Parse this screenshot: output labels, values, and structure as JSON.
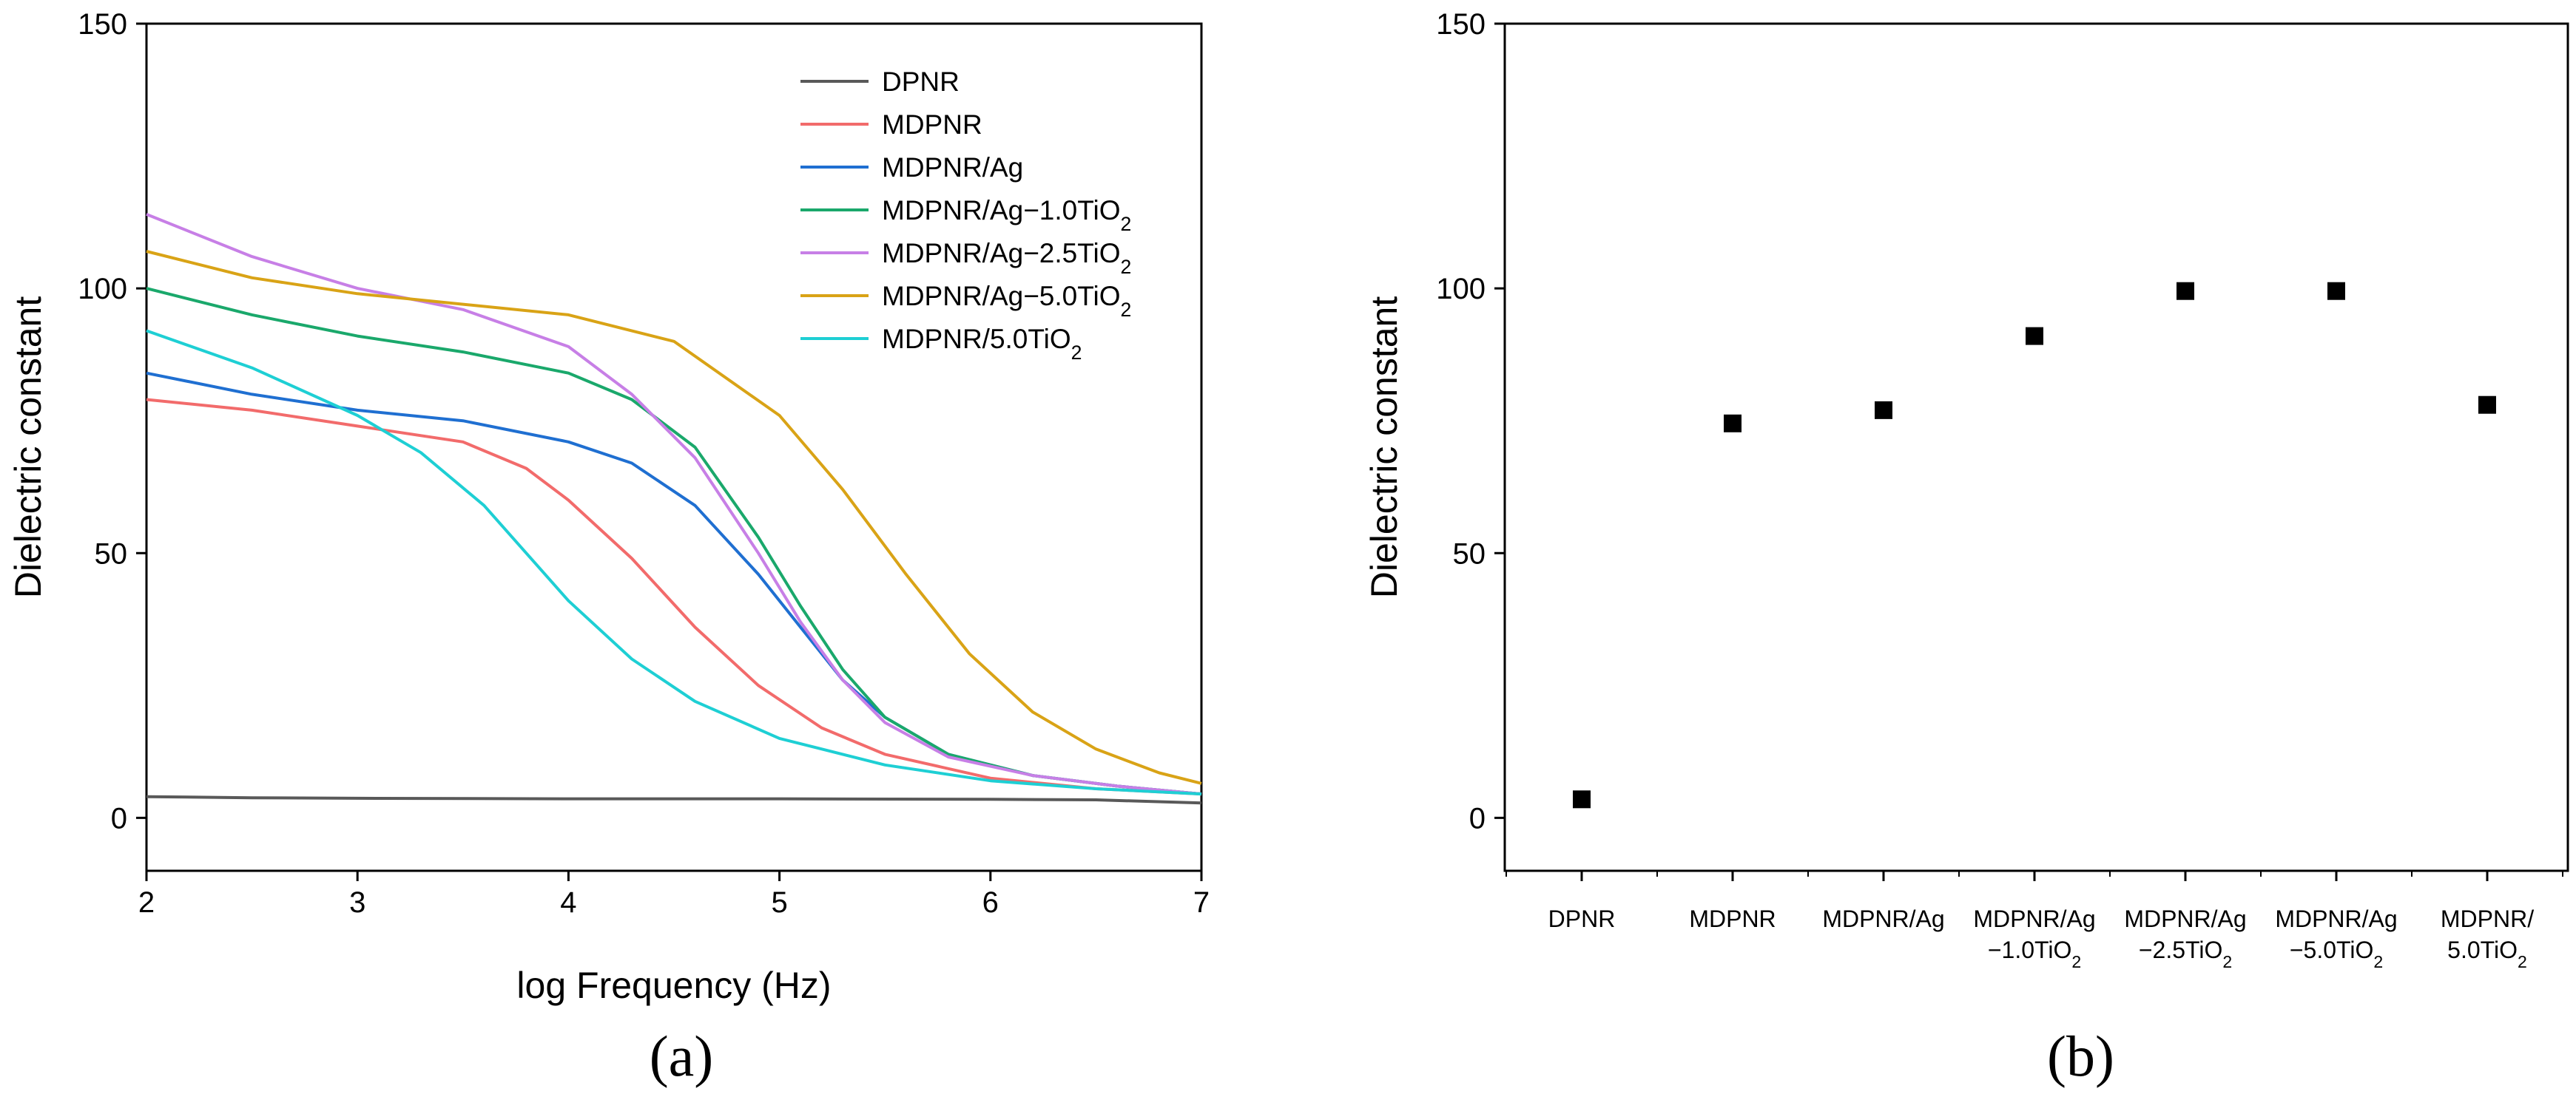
{
  "chart_data": [
    {
      "type": "line",
      "panel_label": "(a)",
      "xlabel": "log Frequency (Hz)",
      "ylabel": "Dielectric constant",
      "xlim": [
        2,
        7
      ],
      "ylim": [
        -10,
        150
      ],
      "xticks": [
        2,
        3,
        4,
        5,
        6,
        7
      ],
      "yticks": [
        0,
        50,
        100,
        150
      ],
      "legend_position": "top-right",
      "series": [
        {
          "name": "DPNR",
          "color": "#595959",
          "x": [
            2,
            2.5,
            3,
            4,
            5,
            6,
            6.5,
            7
          ],
          "y": [
            4,
            3.8,
            3.7,
            3.6,
            3.6,
            3.5,
            3.4,
            2.8
          ]
        },
        {
          "name": "MDPNR",
          "color": "#f26b6b",
          "x": [
            2,
            2.5,
            3,
            3.5,
            3.8,
            4,
            4.3,
            4.6,
            4.9,
            5.2,
            5.5,
            6,
            6.5,
            7
          ],
          "y": [
            79,
            77,
            74,
            71,
            66,
            60,
            49,
            36,
            25,
            17,
            12,
            7.5,
            5.5,
            4.5
          ]
        },
        {
          "name": "MDPNR/Ag",
          "color": "#1f6fd1",
          "x": [
            2,
            2.5,
            3,
            3.5,
            4,
            4.3,
            4.6,
            4.9,
            5.1,
            5.3,
            5.5,
            5.8,
            6.2,
            6.6,
            7
          ],
          "y": [
            84,
            80,
            77,
            75,
            71,
            67,
            59,
            46,
            36,
            26,
            19,
            12,
            8,
            6,
            4.5
          ]
        },
        {
          "name": "MDPNR/Ag−1.0TiO₂",
          "color": "#1aa86b",
          "x": [
            2,
            2.5,
            3,
            3.5,
            4,
            4.3,
            4.6,
            4.9,
            5.1,
            5.3,
            5.5,
            5.8,
            6.2,
            6.6,
            7
          ],
          "y": [
            100,
            95,
            91,
            88,
            84,
            79,
            70,
            53,
            40,
            28,
            19,
            12,
            8,
            6,
            4.5
          ]
        },
        {
          "name": "MDPNR/Ag−2.5TiO₂",
          "color": "#c77fe6",
          "x": [
            2,
            2.5,
            3,
            3.5,
            4,
            4.3,
            4.6,
            4.9,
            5.1,
            5.3,
            5.5,
            5.8,
            6.2,
            6.6,
            7
          ],
          "y": [
            114,
            106,
            100,
            96,
            89,
            80,
            68,
            50,
            37,
            26,
            18,
            11.5,
            8,
            6,
            4.5
          ]
        },
        {
          "name": "MDPNR/Ag−5.0TiO₂",
          "color": "#d9a316",
          "x": [
            2,
            2.5,
            3,
            3.5,
            4,
            4.5,
            5,
            5.3,
            5.6,
            5.9,
            6.2,
            6.5,
            6.8,
            7
          ],
          "y": [
            107,
            102,
            99,
            97,
            95,
            90,
            76,
            62,
            46,
            31,
            20,
            13,
            8.5,
            6.5
          ]
        },
        {
          "name": "MDPNR/5.0TiO₂",
          "color": "#1ecfd4",
          "x": [
            2,
            2.5,
            3,
            3.3,
            3.6,
            3.8,
            4,
            4.3,
            4.6,
            5,
            5.5,
            6,
            6.5,
            7
          ],
          "y": [
            92,
            85,
            76,
            69,
            59,
            50,
            41,
            30,
            22,
            15,
            10,
            7,
            5.5,
            4.5
          ]
        }
      ]
    },
    {
      "type": "scatter",
      "panel_label": "(b)",
      "xlabel": "",
      "ylabel": "Dielectric constant",
      "ylim": [
        -10,
        150
      ],
      "yticks": [
        0,
        50,
        100,
        150
      ],
      "marker": "square",
      "marker_color": "#000000",
      "categories": [
        [
          "DPNR"
        ],
        [
          "MDPNR"
        ],
        [
          "MDPNR/Ag"
        ],
        [
          "MDPNR/Ag",
          "−1.0TiO₂"
        ],
        [
          "MDPNR/Ag",
          "−2.5TiO₂"
        ],
        [
          "MDPNR/Ag",
          "−5.0TiO₂"
        ],
        [
          "MDPNR/",
          "5.0TiO₂"
        ]
      ],
      "values": [
        3.5,
        74.5,
        77,
        91,
        99.5,
        99.5,
        78
      ]
    }
  ]
}
